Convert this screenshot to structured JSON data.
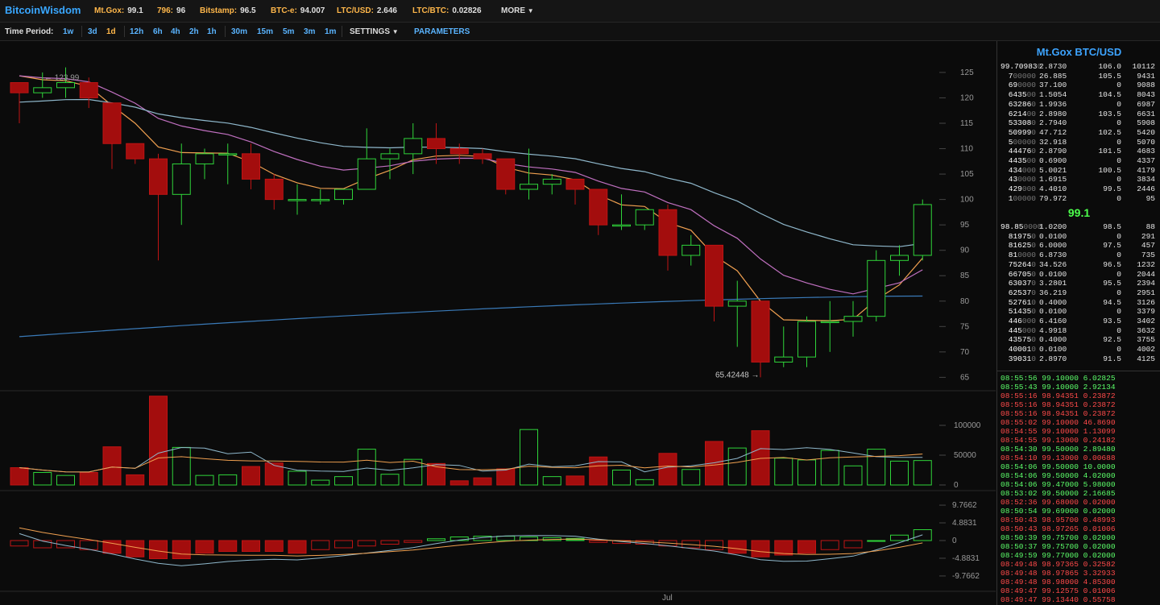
{
  "header": {
    "brand": "BitcoinWisdom",
    "tickers": [
      {
        "name": "Mt.Gox:",
        "value": "99.1"
      },
      {
        "name": "796:",
        "value": "96"
      },
      {
        "name": "Bitstamp:",
        "value": "96.5"
      },
      {
        "name": "BTC-e:",
        "value": "94.007"
      },
      {
        "name": "LTC/USD:",
        "value": "2.646"
      },
      {
        "name": "LTC/BTC:",
        "value": "0.02826"
      }
    ],
    "more_label": "MORE"
  },
  "periods": {
    "label": "Time Period:",
    "items": [
      "1w",
      "3d",
      "1d",
      "12h",
      "6h",
      "4h",
      "2h",
      "1h",
      "30m",
      "15m",
      "5m",
      "3m",
      "1m"
    ],
    "active": "1d",
    "settings_label": "SETTINGS",
    "parameters_label": "PARAMETERS"
  },
  "colors": {
    "up": "#2fd43a",
    "down": "#a30d0d",
    "accent": "#3da4ff",
    "ema_short": "#f0a050",
    "ema_long": "#c070c0",
    "sma_mid": "#8fb8cc",
    "sma_long": "#3a7ab8"
  },
  "chart_data": {
    "type": "candlestick",
    "x_tick_labels": [
      "Jul"
    ],
    "price_axis": {
      "ticks": [
        65,
        70,
        75,
        80,
        85,
        90,
        95,
        100,
        105,
        110,
        115,
        120,
        125
      ],
      "ylim": [
        63,
        128
      ]
    },
    "annotations": [
      {
        "text": "← 123.99",
        "value": 123.99
      },
      {
        "text": "65.42448 →",
        "value": 65.42448
      }
    ],
    "candles": [
      [
        123,
        123,
        115,
        121
      ],
      [
        121,
        125,
        120,
        122
      ],
      [
        122,
        126,
        120,
        123
      ],
      [
        123,
        124,
        118,
        120
      ],
      [
        119,
        119,
        106,
        111
      ],
      [
        111,
        111,
        107,
        108
      ],
      [
        108,
        109,
        88,
        101
      ],
      [
        101,
        111,
        95,
        107
      ],
      [
        107,
        110,
        104,
        109
      ],
      [
        109,
        111,
        103,
        109
      ],
      [
        109,
        111,
        102,
        104
      ],
      [
        104,
        105,
        98,
        100
      ],
      [
        100,
        103,
        97,
        100
      ],
      [
        100,
        102,
        99,
        100
      ],
      [
        100,
        102,
        99,
        102
      ],
      [
        102,
        114,
        102,
        108
      ],
      [
        108,
        110,
        104,
        109
      ],
      [
        109,
        115,
        105,
        112
      ],
      [
        112,
        115,
        107,
        110
      ],
      [
        110,
        111,
        107,
        109
      ],
      [
        109,
        110,
        107,
        108
      ],
      [
        108,
        108,
        101,
        102
      ],
      [
        102,
        110,
        100,
        103
      ],
      [
        103,
        105,
        101,
        104
      ],
      [
        104,
        104,
        99,
        102
      ],
      [
        102,
        102,
        93,
        95
      ],
      [
        95,
        101,
        94,
        95
      ],
      [
        95,
        98,
        94,
        98
      ],
      [
        98,
        99,
        86,
        89
      ],
      [
        89,
        93,
        87,
        91
      ],
      [
        91,
        91,
        76,
        79
      ],
      [
        79,
        84,
        71,
        80
      ],
      [
        80,
        80,
        65,
        68
      ],
      [
        68,
        75,
        67,
        69
      ],
      [
        69,
        77,
        67,
        76
      ],
      [
        76,
        80,
        70,
        76
      ],
      [
        76,
        80,
        73,
        77
      ],
      [
        77,
        90,
        76,
        88
      ],
      [
        88,
        91,
        85,
        89
      ],
      [
        89,
        100,
        88,
        99
      ]
    ],
    "volume": {
      "ticks": [
        0,
        50000,
        100000
      ],
      "values": [
        29000,
        21000,
        16000,
        21000,
        64000,
        17000,
        149000,
        63000,
        16000,
        17000,
        31000,
        37000,
        23000,
        8000,
        14000,
        60000,
        18000,
        43000,
        36000,
        7000,
        12000,
        27000,
        93000,
        14000,
        15000,
        47000,
        25000,
        9000,
        53000,
        26000,
        73000,
        62000,
        91000,
        45000,
        42000,
        58000,
        32000,
        60000,
        40000,
        41000
      ]
    },
    "macd": {
      "ticks": [
        "9.7662",
        "4.8831",
        "0",
        "-4.8831",
        "-9.7662"
      ],
      "ylim": [
        -10,
        10
      ],
      "histogram": [
        -1.5,
        -2,
        -2,
        -2.5,
        -3.5,
        -4.5,
        -5,
        -5,
        -3.5,
        -3,
        -3,
        -3,
        -3.5,
        -2.5,
        -2,
        -1.5,
        -1,
        -0.5,
        0.5,
        1,
        1.2,
        1.2,
        1,
        0.8,
        0.6,
        -0.5,
        -0.8,
        -1,
        -1.5,
        -2,
        -2.5,
        -3.5,
        -4.5,
        -4,
        -3.5,
        -2.5,
        -2,
        0,
        1.5,
        3
      ]
    }
  },
  "orderbook": {
    "title": "Mt.Gox BTC/USD",
    "last_price": "99.1",
    "asks": [
      [
        "99.70983",
        "0",
        "2.8730",
        "106.0",
        "10112"
      ],
      [
        "7",
        "00000",
        "26.885",
        "105.5",
        "9431"
      ],
      [
        "69",
        "0000",
        "37.100",
        "0",
        "9088"
      ],
      [
        "6435",
        "00",
        "1.5054",
        "104.5",
        "8043"
      ],
      [
        "63286",
        "0",
        "1.9936",
        "0",
        "6987"
      ],
      [
        "6214",
        "00",
        "2.8980",
        "103.5",
        "6631"
      ],
      [
        "53308",
        "0",
        "2.7940",
        "0",
        "5908"
      ],
      [
        "50999",
        "0",
        "47.712",
        "102.5",
        "5420"
      ],
      [
        "5",
        "00000",
        "32.918",
        "0",
        "5070"
      ],
      [
        "44476",
        "0",
        "2.8790",
        "101.5",
        "4683"
      ],
      [
        "4435",
        "00",
        "0.6900",
        "0",
        "4337"
      ],
      [
        "434",
        "000",
        "5.0021",
        "100.5",
        "4179"
      ],
      [
        "43",
        "0000",
        "1.6915",
        "0",
        "3834"
      ],
      [
        "429",
        "000",
        "4.4010",
        "99.5",
        "2446"
      ],
      [
        "1",
        "00000",
        "79.972",
        "0",
        "95"
      ]
    ],
    "bids": [
      [
        "98.85",
        "0000",
        "1.0200",
        "98.5",
        "88"
      ],
      [
        "81975",
        "0",
        "0.0100",
        "0",
        "291"
      ],
      [
        "81625",
        "0",
        "6.0000",
        "97.5",
        "457"
      ],
      [
        "81",
        "0000",
        "6.8730",
        "0",
        "735"
      ],
      [
        "75264",
        "0",
        "34.526",
        "96.5",
        "1232"
      ],
      [
        "66705",
        "0",
        "0.0100",
        "0",
        "2044"
      ],
      [
        "63037",
        "0",
        "3.2801",
        "95.5",
        "2394"
      ],
      [
        "62537",
        "0",
        "36.219",
        "0",
        "2951"
      ],
      [
        "52761",
        "0",
        "0.4000",
        "94.5",
        "3126"
      ],
      [
        "51435",
        "0",
        "0.0100",
        "0",
        "3379"
      ],
      [
        "446",
        "000",
        "6.4160",
        "93.5",
        "3402"
      ],
      [
        "445",
        "000",
        "4.9918",
        "0",
        "3632"
      ],
      [
        "43575",
        "0",
        "0.4000",
        "92.5",
        "3755"
      ],
      [
        "40001",
        "0",
        "0.0100",
        "0",
        "4002"
      ],
      [
        "39031",
        "0",
        "2.8970",
        "91.5",
        "4125"
      ]
    ]
  },
  "trades": [
    {
      "text": "08:55:56 99.10000 6.02825",
      "side": "buy"
    },
    {
      "text": "08:55:43 99.10000 2.92134",
      "side": "buy"
    },
    {
      "text": "08:55:16 98.94351 0.23872",
      "side": "sell"
    },
    {
      "text": "08:55:16 98.94351 0.23872",
      "side": "sell"
    },
    {
      "text": "08:55:16 98.94351 0.23872",
      "side": "sell"
    },
    {
      "text": "08:55:02 99.10000 46.8690",
      "side": "sell"
    },
    {
      "text": "08:54:55 99.10000 1.13099",
      "side": "sell"
    },
    {
      "text": "08:54:55 99.13000 0.24182",
      "side": "sell"
    },
    {
      "text": "08:54:30 99.50000 2.89480",
      "side": "buy"
    },
    {
      "text": "08:54:10 99.13000 0.00688",
      "side": "sell"
    },
    {
      "text": "08:54:06 99.50000 10.0000",
      "side": "buy"
    },
    {
      "text": "08:54:06 99.50000 4.02000",
      "side": "buy"
    },
    {
      "text": "08:54:06 99.47000 5.98000",
      "side": "buy"
    },
    {
      "text": "08:53:02 99.50000 2.16685",
      "side": "buy"
    },
    {
      "text": "08:52:36 99.68000 0.02000",
      "side": "sell"
    },
    {
      "text": "08:50:54 99.69000 0.02000",
      "side": "buy"
    },
    {
      "text": "08:50:43 98.95700 0.48993",
      "side": "sell"
    },
    {
      "text": "08:50:43 98.97265 0.01006",
      "side": "sell"
    },
    {
      "text": "08:50:39 99.75700 0.02000",
      "side": "buy"
    },
    {
      "text": "08:50:37 99.75700 0.02000",
      "side": "buy"
    },
    {
      "text": "08:49:59 99.77000 0.02000",
      "side": "buy"
    },
    {
      "text": "08:49:48 98.97365 0.32582",
      "side": "sell"
    },
    {
      "text": "08:49:48 98.97865 3.32933",
      "side": "sell"
    },
    {
      "text": "08:49:48 98.98000 4.85300",
      "side": "sell"
    },
    {
      "text": "08:49:47 99.12575 0.01006",
      "side": "sell"
    },
    {
      "text": "08:49:47 99.13440 0.55758",
      "side": "sell"
    }
  ]
}
